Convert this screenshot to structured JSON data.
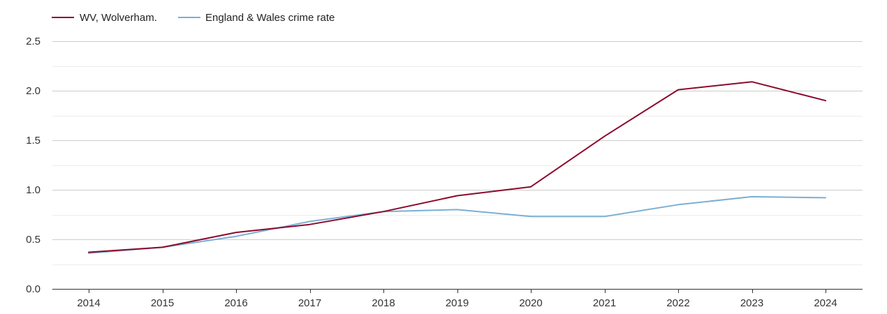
{
  "chart_data": {
    "type": "line",
    "title": "",
    "xlabel": "",
    "ylabel": "",
    "x": [
      "2014",
      "2015",
      "2016",
      "2017",
      "2018",
      "2019",
      "2020",
      "2021",
      "2022",
      "2023",
      "2024"
    ],
    "ylim": [
      0,
      2.5
    ],
    "yticks": [
      "0.0",
      "0.5",
      "1.0",
      "1.5",
      "2.0",
      "2.5"
    ],
    "grid": true,
    "legend_position": "top-left",
    "series": [
      {
        "name": "WV, Wolverham.",
        "color": "#8b0a2e",
        "values": [
          0.37,
          0.42,
          0.57,
          0.65,
          0.78,
          0.94,
          1.03,
          1.54,
          2.01,
          2.09,
          1.9
        ]
      },
      {
        "name": "England & Wales crime rate",
        "color": "#7bafd4",
        "values": [
          0.36,
          0.42,
          0.53,
          0.68,
          0.78,
          0.8,
          0.73,
          0.73,
          0.85,
          0.93,
          0.92
        ]
      }
    ]
  }
}
